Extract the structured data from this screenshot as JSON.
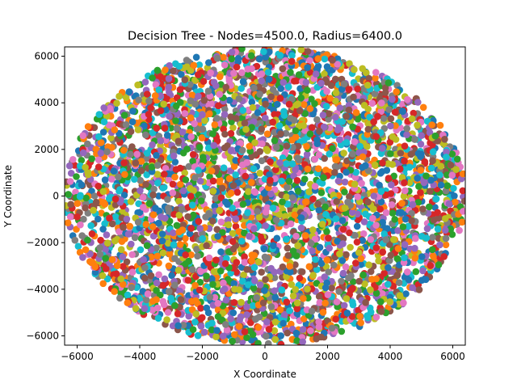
{
  "chart_data": {
    "type": "scatter",
    "title": "Decision Tree - Nodes=4500.0, Radius=6400.0",
    "xlabel": "X Coordinate",
    "ylabel": "Y Coordinate",
    "xlim": [
      -6400,
      6400
    ],
    "ylim": [
      -6400,
      6400
    ],
    "xticks": [
      -6000,
      -4000,
      -2000,
      0,
      2000,
      4000,
      6000
    ],
    "yticks": [
      -6000,
      -4000,
      -2000,
      0,
      2000,
      4000,
      6000
    ],
    "xtick_labels": [
      "−6000",
      "−4000",
      "−2000",
      "0",
      "2000",
      "4000",
      "6000"
    ],
    "ytick_labels": [
      "−6000",
      "−4000",
      "−2000",
      "0",
      "2000",
      "4000",
      "6000"
    ],
    "grid": false,
    "point_count": 4500,
    "region": {
      "shape": "circle",
      "center": [
        0,
        0
      ],
      "radius": 6400
    },
    "palette": [
      "#1f77b4",
      "#ff7f0e",
      "#2ca02c",
      "#d62728",
      "#9467bd",
      "#8c564b",
      "#e377c2",
      "#7f7f7f",
      "#bcbd22",
      "#17becf"
    ]
  }
}
